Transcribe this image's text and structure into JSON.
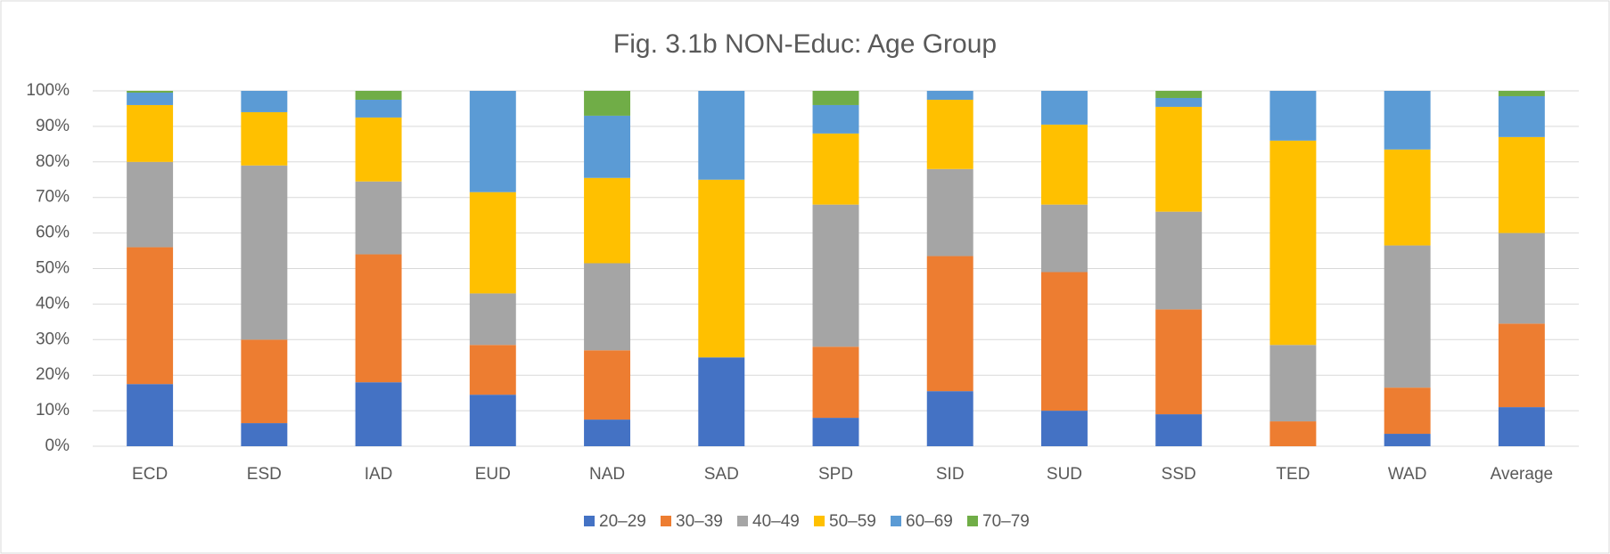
{
  "chart_data": {
    "type": "stacked_bar",
    "title": "Fig. 3.1b NON-Educ: Age Group",
    "categories": [
      "ECD",
      "ESD",
      "IAD",
      "EUD",
      "NAD",
      "SAD",
      "SPD",
      "SID",
      "SUD",
      "SSD",
      "TED",
      "WAD",
      "Average"
    ],
    "series": [
      {
        "name": "20–29",
        "color": "#4472c4",
        "values": [
          17.5,
          6.5,
          18,
          14.5,
          7.5,
          25,
          8,
          15.5,
          10,
          9,
          0,
          3.5,
          11
        ]
      },
      {
        "name": "30–39",
        "color": "#ed7d31",
        "values": [
          38.5,
          23.5,
          36,
          14,
          19.5,
          0,
          20,
          38,
          39,
          29.5,
          7,
          13,
          23.5
        ]
      },
      {
        "name": "40–49",
        "color": "#a5a5a5",
        "values": [
          24,
          49,
          20.5,
          14.5,
          24.5,
          0,
          40,
          24.5,
          19,
          27.5,
          21.5,
          40,
          25.5
        ]
      },
      {
        "name": "50–59",
        "color": "#ffc000",
        "values": [
          16,
          15,
          18,
          28.5,
          24,
          50,
          20,
          19.5,
          22.5,
          29.5,
          57.5,
          27,
          27
        ]
      },
      {
        "name": "60–69",
        "color": "#5b9bd5",
        "values": [
          3.5,
          6,
          5,
          28.5,
          17.5,
          25,
          8,
          2.5,
          9.5,
          2.5,
          14,
          16.5,
          11.5
        ]
      },
      {
        "name": "70–79",
        "color": "#70ad47",
        "values": [
          0.5,
          0,
          2.5,
          0,
          7,
          0,
          4,
          0,
          0,
          2,
          0,
          0,
          1.5
        ]
      }
    ],
    "ylim": [
      0,
      100
    ],
    "yticks": [
      {
        "value": 0,
        "label": "0%"
      },
      {
        "value": 10,
        "label": "10%"
      },
      {
        "value": 20,
        "label": "20%"
      },
      {
        "value": 30,
        "label": "30%"
      },
      {
        "value": 40,
        "label": "40%"
      },
      {
        "value": 50,
        "label": "50%"
      },
      {
        "value": 60,
        "label": "60%"
      },
      {
        "value": 70,
        "label": "70%"
      },
      {
        "value": 80,
        "label": "80%"
      },
      {
        "value": 90,
        "label": "90%"
      },
      {
        "value": 100,
        "label": "100%"
      }
    ],
    "grid": true,
    "legend": "bottom"
  }
}
